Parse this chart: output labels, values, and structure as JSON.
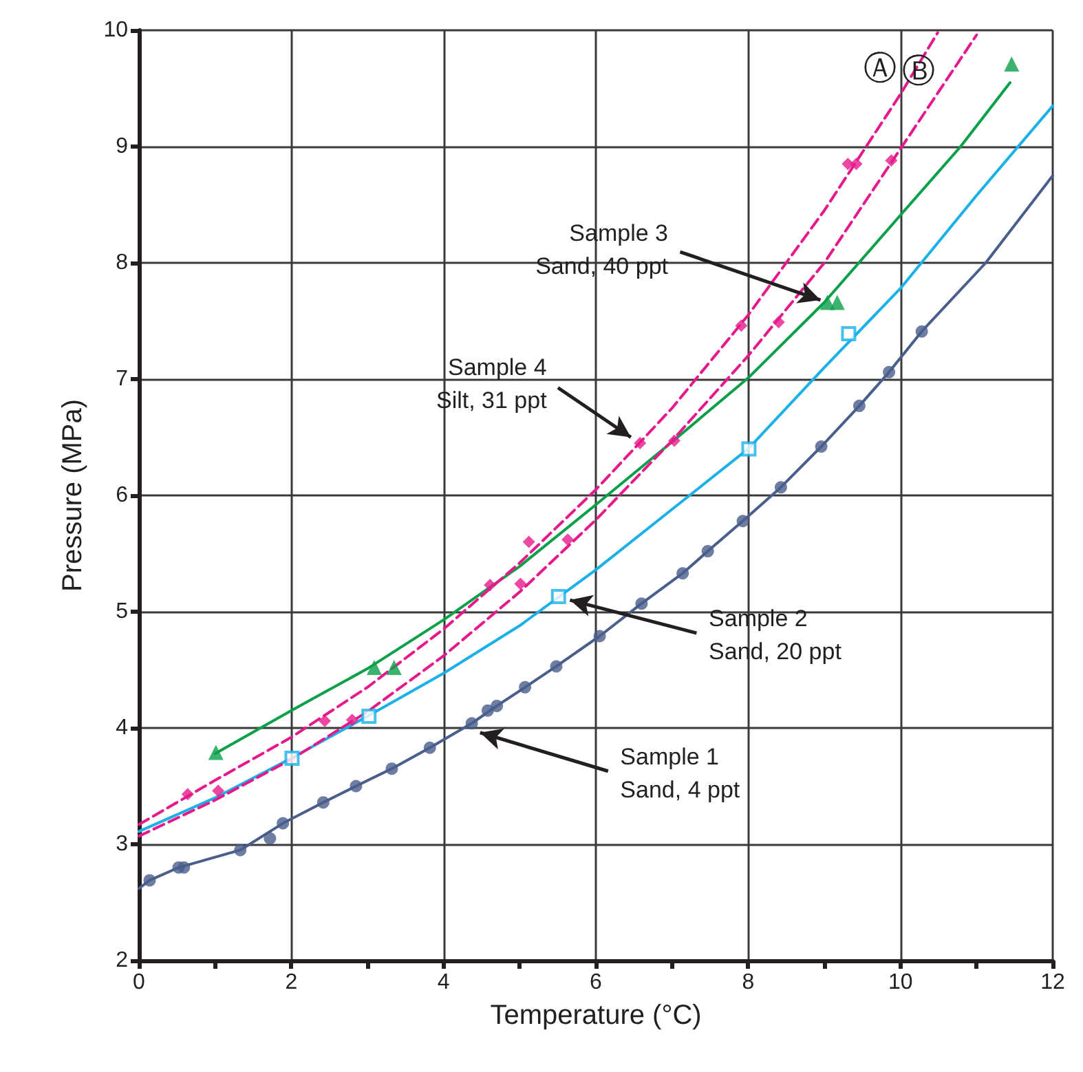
{
  "chart_data": {
    "type": "scatter",
    "xlabel": "Temperature (°C)",
    "ylabel": "Pressure (MPa)",
    "xlim": [
      0,
      12
    ],
    "xticks": [
      0,
      2,
      4,
      6,
      8,
      10,
      12
    ],
    "ylim": [
      2,
      10
    ],
    "yticks": [
      2,
      3,
      4,
      5,
      6,
      7,
      8,
      9,
      10
    ],
    "grid": true,
    "legend": false,
    "series": [
      {
        "marker": "circle",
        "color": "#4a5e8c",
        "x": [
          0.14,
          0.52,
          0.59,
          1.33,
          1.72,
          1.89,
          2.42,
          2.85,
          3.32,
          3.82,
          4.37,
          4.58,
          4.7,
          5.07,
          5.48,
          6.05,
          6.6,
          7.14,
          7.47,
          7.93,
          8.43,
          8.96,
          9.46,
          9.85,
          10.28
        ],
        "values": [
          2.69,
          2.8,
          2.8,
          2.95,
          3.05,
          3.18,
          3.36,
          3.5,
          3.65,
          3.83,
          4.04,
          4.15,
          4.19,
          4.35,
          4.53,
          4.79,
          5.07,
          5.33,
          5.52,
          5.78,
          6.07,
          6.42,
          6.77,
          7.06,
          7.41
        ]
      },
      {
        "marker": "square",
        "color": "#1ab0e8",
        "x": [
          2.01,
          3.02,
          5.51,
          8.01,
          9.32
        ],
        "values": [
          3.74,
          4.1,
          5.13,
          6.4,
          7.39
        ]
      },
      {
        "marker": "triangle",
        "color": "#0aa04a",
        "x": [
          1.01,
          3.09,
          3.35,
          9.04,
          9.17,
          11.46
        ],
        "values": [
          3.79,
          4.52,
          4.52,
          7.66,
          7.66,
          9.71
        ]
      },
      {
        "marker": "diamond",
        "color": "#e6198c",
        "x": [
          0.64,
          2.44,
          4.61,
          5.12,
          6.58,
          7.91,
          9.31,
          9.42
        ],
        "values": [
          3.43,
          4.06,
          5.23,
          5.6,
          6.45,
          7.46,
          8.85,
          8.85
        ]
      },
      {
        "marker": "diamond",
        "color": "#e6198c",
        "x": [
          1.04,
          2.8,
          5.01,
          5.63,
          7.03,
          8.4,
          9.88
        ],
        "values": [
          3.46,
          4.07,
          5.24,
          5.62,
          6.47,
          7.49,
          8.88
        ]
      },
      {
        "type": "line",
        "marker": "none",
        "line_style": "solid",
        "color": "#4a5e8c",
        "x": [
          0,
          0.14,
          0.52,
          1.33,
          1.89,
          2.42,
          2.85,
          3.32,
          3.82,
          4.37,
          4.7,
          5.07,
          5.48,
          6.05,
          6.6,
          7.14,
          7.47,
          7.93,
          8.43,
          8.96,
          9.46,
          9.85,
          10.28,
          11.12,
          12
        ],
        "values": [
          2.62,
          2.69,
          2.8,
          2.95,
          3.18,
          3.36,
          3.5,
          3.65,
          3.83,
          4.04,
          4.19,
          4.35,
          4.53,
          4.79,
          5.07,
          5.33,
          5.52,
          5.78,
          6.07,
          6.42,
          6.77,
          7.06,
          7.41,
          8.0,
          8.75
        ]
      },
      {
        "type": "line",
        "marker": "none",
        "line_style": "solid",
        "color": "#1ab0e8",
        "x": [
          0,
          1,
          2,
          3,
          4,
          5,
          6,
          7,
          8,
          9,
          10,
          11,
          12
        ],
        "values": [
          3.11,
          3.4,
          3.74,
          4.1,
          4.47,
          4.88,
          5.36,
          5.88,
          6.4,
          7.1,
          7.78,
          8.58,
          9.35
        ]
      },
      {
        "type": "line",
        "marker": "none",
        "line_style": "solid",
        "color": "#0aa04a",
        "x": [
          1,
          2,
          3,
          4,
          5,
          6,
          7,
          8,
          9,
          10,
          10.79,
          11.44
        ],
        "values": [
          3.78,
          4.15,
          4.51,
          4.93,
          5.39,
          5.92,
          6.46,
          7.01,
          7.66,
          8.41,
          9.0,
          9.55
        ]
      },
      {
        "type": "line",
        "name": "Ⓐ",
        "marker": "none",
        "line_style": "dashed",
        "color": "#e6198c",
        "x": [
          0,
          1,
          2,
          3,
          4,
          5,
          6,
          7,
          8,
          9,
          10,
          10.49
        ],
        "values": [
          3.17,
          3.55,
          3.92,
          4.35,
          4.85,
          5.42,
          6.05,
          6.75,
          7.55,
          8.45,
          9.45,
          9.98
        ]
      },
      {
        "type": "line",
        "name": "Ⓑ",
        "marker": "none",
        "line_style": "dashed",
        "color": "#e6198c",
        "x": [
          0,
          1,
          2,
          3,
          4,
          5,
          6,
          7,
          8,
          9,
          10,
          11
        ],
        "values": [
          3.07,
          3.38,
          3.73,
          4.14,
          4.62,
          5.17,
          5.79,
          6.47,
          7.2,
          8.0,
          8.98,
          9.96
        ]
      }
    ],
    "annotations": [
      {
        "text": "Sample 1\nSand, 4 ppt",
        "x": 4.48,
        "y": 3.96
      },
      {
        "text": "Sample 2\nSand, 20 ppt",
        "x": 5.66,
        "y": 5.1
      },
      {
        "text": "Sample 3\nSand, 40 ppt",
        "x": 8.95,
        "y": 7.68
      },
      {
        "text": "Sample 4\nSilt, 31 ppt",
        "x": 6.46,
        "y": 6.5
      }
    ]
  }
}
